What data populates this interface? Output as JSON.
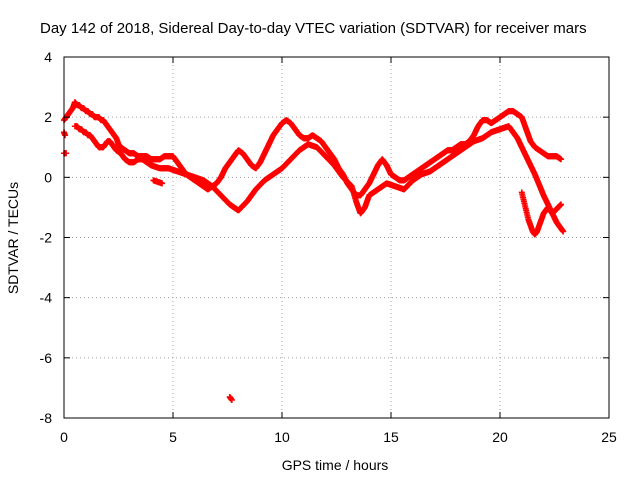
{
  "chart_data": {
    "type": "scatter",
    "title": "Day 142 of 2018, Sidereal Day-to-day VTEC variation (SDTVAR) for receiver mars",
    "xlabel": "GPS time / hours",
    "ylabel": "SDTVAR / TECUs",
    "xlim": [
      0,
      25
    ],
    "ylim": [
      -8,
      4
    ],
    "xticks": [
      0,
      5,
      10,
      15,
      20,
      25
    ],
    "yticks": [
      -8,
      -6,
      -4,
      -2,
      0,
      2,
      4
    ],
    "grid": true,
    "marker": "+",
    "series": [
      {
        "name": "SDTVAR",
        "color": "#ff0000",
        "tracks": [
          {
            "x": [
              0.0,
              0.1,
              0.2,
              0.3,
              0.4,
              0.5,
              0.6,
              0.7,
              0.8,
              0.9,
              1.0,
              1.1,
              1.2,
              1.3,
              1.4,
              1.5,
              1.6,
              1.7,
              1.8,
              1.9,
              2.0,
              2.1,
              2.2,
              2.3,
              2.4,
              2.5,
              2.6,
              2.8,
              3.0,
              3.2,
              3.4,
              3.6,
              3.8,
              4.0,
              4.2,
              4.4,
              4.6,
              4.8,
              5.0,
              5.2,
              5.4,
              5.6,
              5.8,
              6.0,
              6.2,
              6.4,
              6.6,
              6.8,
              7.0,
              7.2,
              7.4,
              7.6,
              7.8,
              8.0,
              8.2,
              8.4,
              8.6,
              8.8,
              9.0,
              9.2,
              9.4,
              9.6,
              9.8,
              10.0,
              10.2,
              10.4,
              10.6,
              10.8,
              11.0,
              11.2,
              11.4,
              11.6,
              11.8,
              12.0,
              12.2,
              12.4,
              12.6,
              12.8,
              13.0,
              13.2,
              13.4,
              13.6,
              13.8,
              14.0,
              14.2,
              14.4,
              14.6,
              14.8,
              15.0,
              15.2,
              15.4,
              15.6,
              15.8,
              16.0,
              16.2,
              16.4,
              16.6,
              16.8,
              17.0,
              17.2,
              17.4,
              17.6,
              17.8,
              18.0,
              18.2,
              18.4,
              18.6,
              18.8,
              19.0,
              19.2,
              19.4,
              19.6,
              19.8,
              20.0,
              20.2,
              20.4,
              20.6,
              20.8,
              21.0,
              21.2,
              21.4,
              21.6,
              21.8,
              22.0,
              22.2,
              22.4,
              22.6,
              22.8
            ],
            "y": [
              1.9,
              2.0,
              2.1,
              2.2,
              2.3,
              2.5,
              2.4,
              2.4,
              2.3,
              2.3,
              2.2,
              2.2,
              2.1,
              2.1,
              2.0,
              2.0,
              2.0,
              1.9,
              1.9,
              1.8,
              1.7,
              1.6,
              1.5,
              1.4,
              1.3,
              1.1,
              1.0,
              0.9,
              0.8,
              0.8,
              0.7,
              0.7,
              0.7,
              0.6,
              0.6,
              0.6,
              0.7,
              0.7,
              0.7,
              0.5,
              0.3,
              0.1,
              0.0,
              -0.1,
              -0.2,
              -0.3,
              -0.4,
              -0.3,
              -0.2,
              0.0,
              0.3,
              0.5,
              0.7,
              0.9,
              0.8,
              0.6,
              0.4,
              0.3,
              0.5,
              0.8,
              1.1,
              1.4,
              1.6,
              1.8,
              1.9,
              1.8,
              1.6,
              1.4,
              1.3,
              1.3,
              1.4,
              1.3,
              1.2,
              1.0,
              0.8,
              0.6,
              0.3,
              0.1,
              -0.2,
              -0.4,
              -0.6,
              -0.6,
              -0.4,
              -0.2,
              0.1,
              0.4,
              0.6,
              0.4,
              0.1,
              0.0,
              -0.1,
              -0.1,
              0.0,
              0.1,
              0.2,
              0.3,
              0.4,
              0.5,
              0.6,
              0.7,
              0.8,
              0.9,
              0.9,
              1.0,
              1.1,
              1.1,
              1.2,
              1.4,
              1.7,
              1.9,
              1.9,
              1.8,
              1.9,
              2.0,
              2.1,
              2.2,
              2.2,
              2.1,
              2.0,
              1.6,
              1.2,
              1.0,
              0.9,
              0.8,
              0.7,
              0.7,
              0.7,
              0.6
            ]
          },
          {
            "x": [
              0.5,
              0.6,
              0.7,
              0.8,
              0.9,
              1.0,
              1.1,
              1.2,
              1.3,
              1.4,
              1.5,
              1.6,
              1.7,
              1.8,
              1.9,
              2.0,
              2.1,
              2.2,
              2.3,
              2.4,
              2.6,
              2.8,
              3.0,
              3.2,
              3.4,
              3.6,
              3.8,
              4.0,
              4.4,
              4.8,
              5.2,
              5.6,
              6.0,
              6.4,
              6.8,
              7.2,
              7.6,
              8.0,
              8.4,
              8.8,
              9.2,
              9.6,
              10.0,
              10.4,
              10.8,
              11.2,
              11.6,
              12.0,
              12.4,
              12.8,
              13.2,
              13.4,
              13.6,
              13.8,
              14.0,
              14.4,
              14.8,
              15.2,
              15.6,
              16.0,
              16.4,
              16.8,
              17.2,
              17.6,
              18.0,
              18.4,
              18.8,
              19.2,
              19.6,
              20.0,
              20.4,
              20.8,
              21.2,
              21.6,
              22.0,
              22.4,
              22.8
            ],
            "y": [
              1.7,
              1.7,
              1.6,
              1.6,
              1.5,
              1.5,
              1.4,
              1.4,
              1.3,
              1.2,
              1.1,
              1.0,
              1.0,
              1.0,
              1.1,
              1.2,
              1.2,
              1.1,
              1.0,
              0.9,
              0.8,
              0.6,
              0.5,
              0.5,
              0.6,
              0.6,
              0.5,
              0.4,
              0.3,
              0.3,
              0.2,
              0.1,
              0.0,
              -0.1,
              -0.3,
              -0.6,
              -0.9,
              -1.1,
              -0.8,
              -0.4,
              -0.1,
              0.1,
              0.3,
              0.6,
              0.9,
              1.1,
              1.0,
              0.7,
              0.4,
              0.0,
              -0.3,
              -0.8,
              -1.2,
              -1.0,
              -0.6,
              -0.4,
              -0.2,
              -0.3,
              -0.4,
              -0.1,
              0.1,
              0.2,
              0.4,
              0.6,
              0.8,
              1.0,
              1.2,
              1.3,
              1.5,
              1.6,
              1.7,
              1.3,
              0.7,
              0.1,
              -0.6,
              -1.2,
              -0.9
            ]
          },
          {
            "x": [
              21.0,
              21.1,
              21.2,
              21.3,
              21.4,
              21.5,
              21.6,
              21.7,
              21.8,
              21.9,
              22.0,
              22.2,
              22.4,
              22.6,
              22.8,
              22.9
            ],
            "y": [
              -0.5,
              -0.8,
              -1.1,
              -1.4,
              -1.6,
              -1.8,
              -1.9,
              -1.8,
              -1.6,
              -1.4,
              -1.2,
              -1.0,
              -1.2,
              -1.5,
              -1.7,
              -1.8
            ]
          },
          {
            "x": [
              0.0,
              0.1
            ],
            "y": [
              0.8,
              0.8
            ]
          },
          {
            "x": [
              0.0,
              0.05
            ],
            "y": [
              1.5,
              1.4
            ]
          },
          {
            "x": [
              4.1,
              4.5
            ],
            "y": [
              -0.1,
              -0.2
            ]
          },
          {
            "x": [
              7.6,
              7.7
            ],
            "y": [
              -7.3,
              -7.4
            ]
          }
        ]
      }
    ]
  }
}
